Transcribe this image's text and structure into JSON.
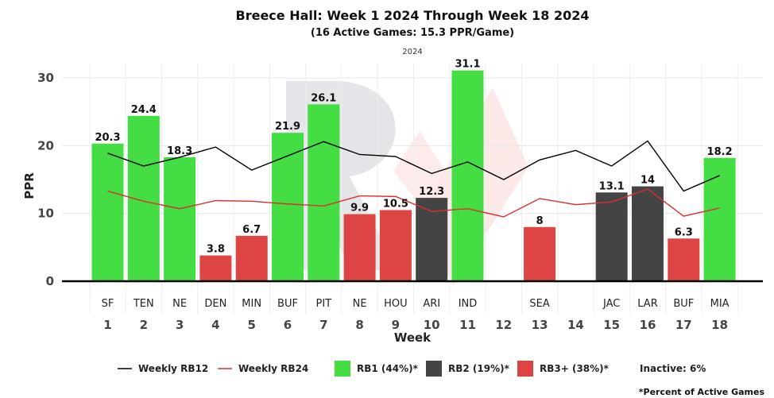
{
  "chart_data": {
    "type": "bar",
    "title": "Breece Hall: Week 1 2024 Through Week 18 2024",
    "subtitle": "(16 Active Games: 15.3 PPR/Game)",
    "season_label": "2024",
    "xlabel": "Week",
    "ylabel": "PPR",
    "ylim": [
      0,
      31.5
    ],
    "yticks": [
      0,
      10,
      20,
      30
    ],
    "grid": true,
    "weeks": [
      1,
      2,
      3,
      4,
      5,
      6,
      7,
      8,
      9,
      10,
      11,
      12,
      13,
      14,
      15,
      16,
      17,
      18
    ],
    "opponents": [
      "SF",
      "TEN",
      "NE",
      "DEN",
      "MIN",
      "BUF",
      "PIT",
      "NE",
      "HOU",
      "ARI",
      "IND",
      "",
      "SEA",
      "",
      "JAC",
      "LAR",
      "BUF",
      "MIA"
    ],
    "values": [
      20.3,
      24.4,
      18.3,
      3.8,
      6.7,
      21.9,
      26.1,
      9.9,
      10.5,
      12.3,
      31.1,
      null,
      8,
      null,
      13.1,
      14,
      6.3,
      18.2
    ],
    "value_labels": [
      "20.3",
      "24.4",
      "18.3",
      "3.8",
      "6.7",
      "21.9",
      "26.1",
      "9.9",
      "10.5",
      "12.3",
      "31.1",
      "",
      "8",
      "",
      "13.1",
      "14",
      "6.3",
      "18.2"
    ],
    "tiers": [
      "RB1",
      "RB1",
      "RB1",
      "RB3+",
      "RB3+",
      "RB1",
      "RB1",
      "RB3+",
      "RB3+",
      "RB2",
      "RB1",
      "",
      "RB3+",
      "",
      "RB2",
      "RB2",
      "RB3+",
      "RB1"
    ],
    "series": [
      {
        "name": "Weekly RB12",
        "color": "#000000",
        "values": [
          18.9,
          17.0,
          18.3,
          19.8,
          16.4,
          18.5,
          20.6,
          18.7,
          18.4,
          15.9,
          17.6,
          15.0,
          17.9,
          19.3,
          17.0,
          20.7,
          13.3,
          15.6
        ]
      },
      {
        "name": "Weekly RB24",
        "color": "#d93030",
        "values": [
          13.3,
          11.8,
          10.7,
          11.9,
          11.8,
          11.4,
          11.1,
          12.6,
          12.5,
          10.3,
          10.7,
          9.5,
          12.2,
          11.3,
          11.7,
          13.6,
          9.6,
          10.8
        ]
      }
    ],
    "tier_colors": {
      "RB1": "#44dd44",
      "RB2": "#444444",
      "RB3+": "#dd4444"
    },
    "legend": {
      "placement": "bottom",
      "items": [
        {
          "kind": "line",
          "label": "Weekly RB12",
          "color": "#000000"
        },
        {
          "kind": "line",
          "label": "Weekly RB24",
          "color": "#d93030"
        },
        {
          "kind": "box",
          "label": "RB1 (44%)*",
          "color": "#44dd44"
        },
        {
          "kind": "box",
          "label": "RB2 (19%)*",
          "color": "#444444"
        },
        {
          "kind": "box",
          "label": "RB3+ (38%)*",
          "color": "#dd4444"
        },
        {
          "kind": "text",
          "label": "Inactive: 6%"
        }
      ]
    },
    "footnote": "*Percent of Active Games"
  }
}
